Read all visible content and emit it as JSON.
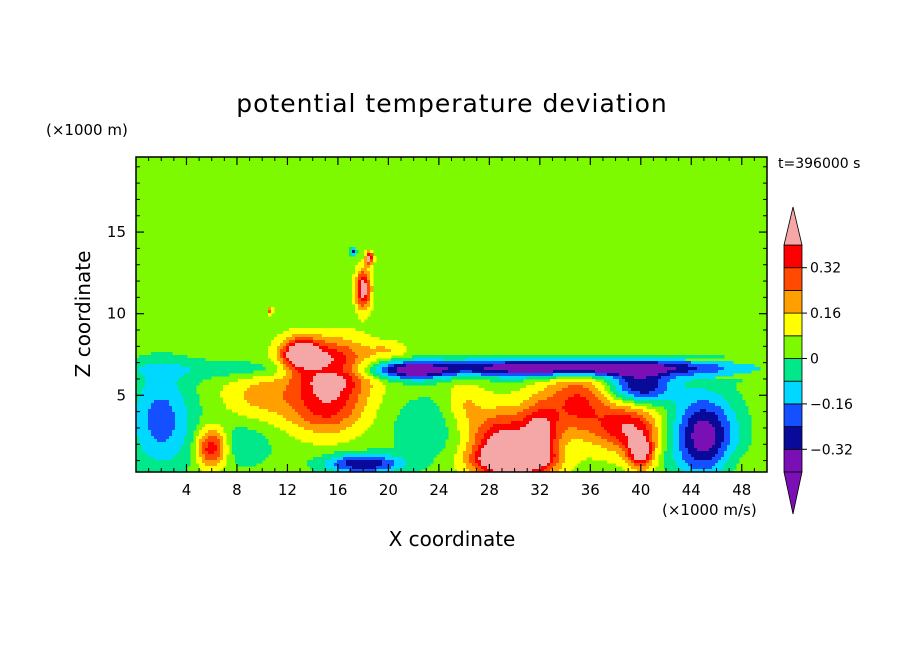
{
  "chart_data": {
    "type": "heatmap",
    "title": "potential temperature deviation",
    "xlabel": "X coordinate",
    "ylabel": "Z coordinate",
    "x_unit": "(×1000 m/s)",
    "y_unit": "(×1000 m)",
    "time_label": "t=396000 s",
    "xlim": [
      0,
      50
    ],
    "ylim": [
      0.3,
      19.6
    ],
    "xticks": [
      4,
      8,
      12,
      16,
      20,
      24,
      28,
      32,
      36,
      40,
      44,
      48
    ],
    "yticks": [
      5,
      10,
      15
    ],
    "colorbar": {
      "levels": [
        -0.4,
        -0.32,
        -0.24,
        -0.16,
        -0.08,
        0,
        0.08,
        0.16,
        0.24,
        0.32,
        0.4
      ],
      "labeled_ticks": [
        0.32,
        0.16,
        0,
        -0.16,
        -0.32
      ],
      "colors": [
        "#7a0fb5",
        "#0a0a9a",
        "#1450ff",
        "#00d8ff",
        "#00e88a",
        "#7dfa00",
        "#ffff00",
        "#ffa000",
        "#ff4a00",
        "#ff0000"
      ],
      "over_color": "#f5a6a6",
      "under_color": "#7a0fb5"
    },
    "background_value": 0.04,
    "features": [
      {
        "x": 3,
        "z": 16.5,
        "rx": 3,
        "rz": 1.5,
        "v": -0.02
      },
      {
        "x": 7,
        "z": 13,
        "rx": 2.5,
        "rz": 1.5,
        "v": -0.02
      },
      {
        "x": 22,
        "z": 16,
        "rx": 6,
        "rz": 4,
        "v": -0.03
      },
      {
        "x": 33,
        "z": 16,
        "rx": 7,
        "rz": 3,
        "v": -0.03
      },
      {
        "x": 46,
        "z": 15,
        "rx": 4,
        "rz": 2,
        "v": -0.02
      },
      {
        "x": 40,
        "z": 12,
        "rx": 5,
        "rz": 1.2,
        "v": -0.02
      },
      {
        "x": 14,
        "z": 10,
        "rx": 3,
        "rz": 1.5,
        "v": -0.02
      },
      {
        "x": 25,
        "z": 11,
        "rx": 4,
        "rz": 2,
        "v": -0.02
      },
      {
        "x": 20,
        "z": 7.8,
        "rx": 1.5,
        "rz": 0.5,
        "v": 0.1
      },
      {
        "x": 47,
        "z": 9,
        "rx": 2,
        "rz": 1,
        "v": -0.02
      },
      {
        "x": 25,
        "z": 6.6,
        "rx": 30,
        "rz": 0.6,
        "v": -0.14
      },
      {
        "x": 35,
        "z": 6.7,
        "rx": 10,
        "rz": 0.5,
        "v": -0.4
      },
      {
        "x": 22,
        "z": 6.5,
        "rx": 2.5,
        "rz": 0.5,
        "v": -0.3
      },
      {
        "x": 2,
        "z": 3.5,
        "rx": 2.5,
        "rz": 3,
        "v": -0.24
      },
      {
        "x": 8,
        "z": 2,
        "rx": 3,
        "rz": 1.5,
        "v": -0.1
      },
      {
        "x": 6,
        "z": 1.8,
        "rx": 1.2,
        "rz": 1.2,
        "v": 0.4
      },
      {
        "x": 10,
        "z": 5,
        "rx": 3,
        "rz": 1.5,
        "v": 0.15
      },
      {
        "x": 15.5,
        "z": 6.5,
        "rx": 3,
        "rz": 1.8,
        "v": 0.45
      },
      {
        "x": 13,
        "z": 7.5,
        "rx": 1.5,
        "rz": 1,
        "v": 0.45
      },
      {
        "x": 15,
        "z": 4,
        "rx": 3,
        "rz": 1.5,
        "v": 0.25
      },
      {
        "x": 18,
        "z": 0.8,
        "rx": 3,
        "rz": 0.6,
        "v": -0.36
      },
      {
        "x": 23,
        "z": 3,
        "rx": 3,
        "rz": 2,
        "v": -0.1
      },
      {
        "x": 29,
        "z": 2,
        "rx": 2.5,
        "rz": 2,
        "v": 0.42
      },
      {
        "x": 32,
        "z": 2.5,
        "rx": 1.5,
        "rz": 2,
        "v": 0.35
      },
      {
        "x": 35,
        "z": 4.5,
        "rx": 2.5,
        "rz": 2,
        "v": 0.3
      },
      {
        "x": 39,
        "z": 3,
        "rx": 2.5,
        "rz": 1.5,
        "v": 0.35
      },
      {
        "x": 40,
        "z": 1.5,
        "rx": 1,
        "rz": 1,
        "v": 0.42
      },
      {
        "x": 45,
        "z": 2.5,
        "rx": 2.5,
        "rz": 2.5,
        "v": -0.42
      },
      {
        "x": 40,
        "z": 5.5,
        "rx": 2.5,
        "rz": 1,
        "v": -0.36
      },
      {
        "x": 30,
        "z": 1,
        "rx": 3,
        "rz": 0.8,
        "v": 0.38
      },
      {
        "x": 47.5,
        "z": 0.8,
        "rx": 2,
        "rz": 1,
        "v": 0.05
      },
      {
        "x": 26,
        "z": 4.5,
        "rx": 1.5,
        "rz": 1.5,
        "v": 0.12
      },
      {
        "x": 18,
        "z": 11.5,
        "rx": 0.6,
        "rz": 1.2,
        "v": 0.45
      },
      {
        "x": 18.5,
        "z": 13.4,
        "rx": 0.3,
        "rz": 0.4,
        "v": 0.42
      },
      {
        "x": 17.2,
        "z": 13.8,
        "rx": 0.2,
        "rz": 0.2,
        "v": -0.3
      },
      {
        "x": 10.6,
        "z": 10.2,
        "rx": 0.2,
        "rz": 0.2,
        "v": 0.25
      }
    ]
  }
}
